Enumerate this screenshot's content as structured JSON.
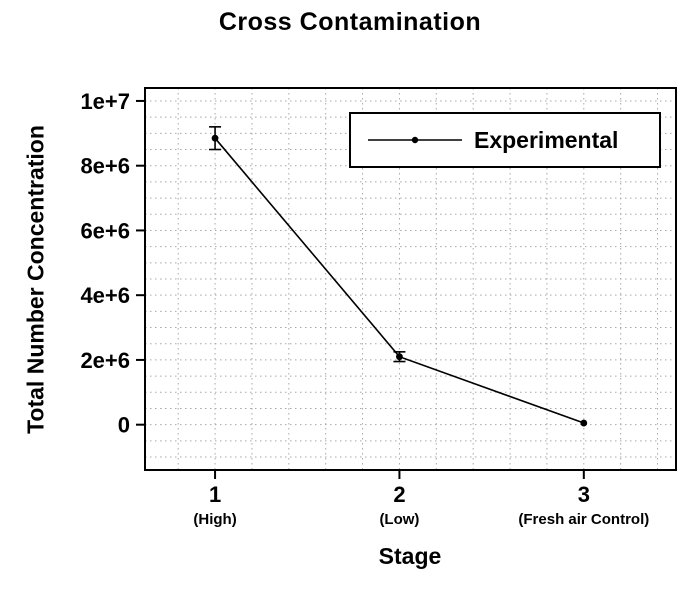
{
  "chart_data": {
    "type": "line",
    "title": "Cross Contamination",
    "xlabel": "Stage",
    "ylabel": "Total Number Concentration",
    "series": [
      {
        "name": "Experimental",
        "x": [
          1,
          2,
          3
        ],
        "y": [
          8850000,
          2100000,
          50000
        ],
        "yerr": [
          350000,
          150000,
          0
        ],
        "color": "#000000",
        "marker": "circle"
      }
    ],
    "x_ticks": [
      {
        "value": 1,
        "label": "1",
        "sublabel": "(High)"
      },
      {
        "value": 2,
        "label": "2",
        "sublabel": "(Low)"
      },
      {
        "value": 3,
        "label": "3",
        "sublabel": "(Fresh air Control)"
      }
    ],
    "y_ticks": [
      {
        "value": 0,
        "label": "0"
      },
      {
        "value": 2000000,
        "label": "2e+6"
      },
      {
        "value": 4000000,
        "label": "4e+6"
      },
      {
        "value": 6000000,
        "label": "6e+6"
      },
      {
        "value": 8000000,
        "label": "8e+6"
      },
      {
        "value": 10000000,
        "label": "1e+7"
      }
    ],
    "xlim": [
      0.62,
      3.5
    ],
    "ylim": [
      -1400000,
      10400000
    ],
    "grid": {
      "show": true,
      "style": "dotted",
      "color": "#a8a8a8",
      "x_step": 0.2,
      "y_step": 500000
    },
    "legend": {
      "position": "top-right",
      "entries": [
        "Experimental"
      ]
    },
    "axis_color": "#000000"
  }
}
